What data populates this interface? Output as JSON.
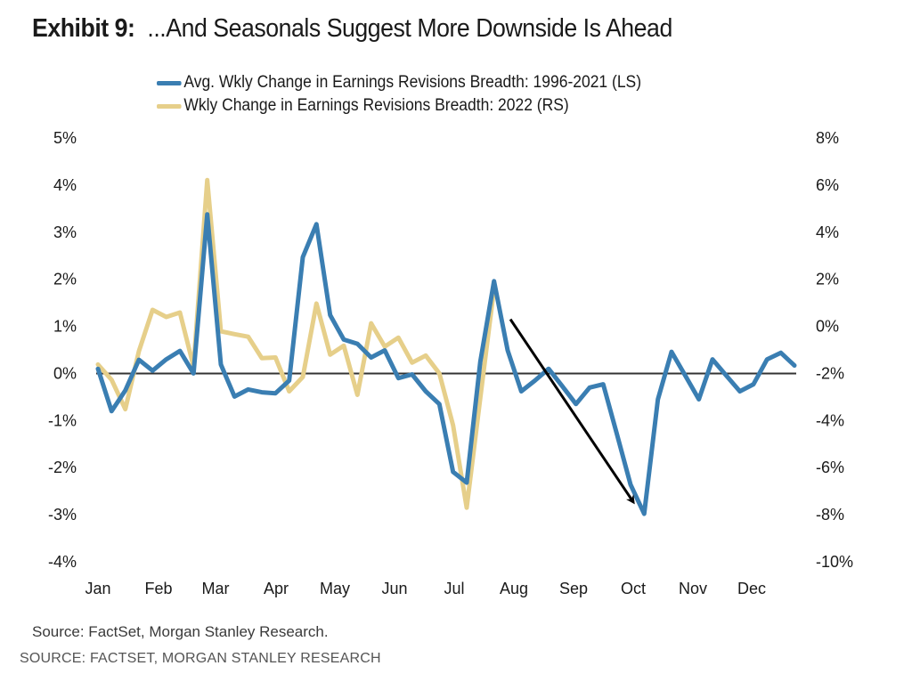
{
  "title": {
    "lead": "Exhibit 9:",
    "text": "...And Seasonals Suggest More Downside Is Ahead"
  },
  "legend": [
    {
      "label": "Avg. Wkly Change in Earnings Revisions Breadth: 1996-2021 (LS)",
      "color": "#3a7eb2"
    },
    {
      "label": "Wkly Change in Earnings Revisions Breadth: 2022 (RS)",
      "color": "#e6cf8a"
    }
  ],
  "source_caption": "Source: FactSet, Morgan Stanley Research.",
  "source_footer": "SOURCE: FACTSET, MORGAN STANLEY RESEARCH",
  "chart_data": {
    "type": "line",
    "title": "...And Seasonals Suggest More Downside Is Ahead",
    "x_label": "",
    "x_tick_labels": [
      "Jan",
      "Feb",
      "Mar",
      "Apr",
      "May",
      "Jun",
      "Jul",
      "Aug",
      "Sep",
      "Oct",
      "Nov",
      "Dec"
    ],
    "x_unit": "week of year",
    "weeks": 52,
    "y_left": {
      "label": "LS",
      "range": [
        -4,
        5
      ],
      "ticks": [
        "5%",
        "4%",
        "3%",
        "2%",
        "1%",
        "0%",
        "-1%",
        "-2%",
        "-3%",
        "-4%"
      ]
    },
    "y_right": {
      "label": "RS",
      "range": [
        -10,
        8
      ],
      "ticks": [
        "8%",
        "6%",
        "4%",
        "2%",
        "0%",
        "-2%",
        "-4%",
        "-6%",
        "-8%",
        "-10%"
      ]
    },
    "zero_line": {
      "axis": "left",
      "value": 0
    },
    "grid": false,
    "legend_position": "top",
    "series": [
      {
        "name": "Avg. Wkly Change in Earnings Revisions Breadth: 1996-2021 (LS)",
        "axis": "left",
        "color": "#3a7eb2",
        "values": [
          0.1,
          -0.8,
          -0.36,
          0.29,
          0.06,
          0.3,
          0.48,
          0.0,
          3.38,
          0.19,
          -0.49,
          -0.34,
          -0.4,
          -0.42,
          -0.15,
          2.47,
          3.17,
          1.24,
          0.72,
          0.63,
          0.34,
          0.49,
          -0.1,
          -0.02,
          -0.38,
          -0.65,
          -2.09,
          -2.32,
          0.25,
          1.96,
          0.49,
          -0.38,
          -0.15,
          0.1,
          -0.27,
          -0.65,
          -0.3,
          -0.23,
          -1.29,
          -2.36,
          -2.98,
          -0.55,
          0.46,
          -0.04,
          -0.55,
          0.3,
          -0.04,
          -0.38,
          -0.23,
          0.3,
          0.44,
          0.17
        ]
      },
      {
        "name": "Wkly Change in Earnings Revisions Breadth: 2022 (RS)",
        "axis": "right",
        "color": "#e6cf8a",
        "values": [
          -1.62,
          -2.27,
          -3.52,
          -1.05,
          0.7,
          0.4,
          0.59,
          -1.7,
          6.21,
          -0.21,
          -0.33,
          -0.44,
          -1.35,
          -1.32,
          -2.76,
          -2.15,
          0.97,
          -1.2,
          -0.82,
          -2.91,
          0.13,
          -0.86,
          -0.48,
          -1.54,
          -1.24,
          -2.0,
          -4.2,
          -7.7,
          -3.03,
          1.61
        ]
      }
    ],
    "annotations": [
      {
        "type": "arrow",
        "from": {
          "week": 30.2,
          "left_value": 1.15
        },
        "to": {
          "week": 39.2,
          "left_value": -2.73
        },
        "color": "#000000"
      }
    ]
  }
}
